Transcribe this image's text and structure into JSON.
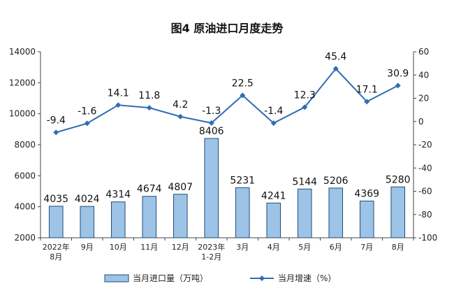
{
  "chart_data": {
    "type": "bar",
    "title": "图4  原油进口月度走势",
    "categories": [
      "2022年\n8月",
      "9月",
      "10月",
      "11月",
      "12月",
      "2023年\n1-2月",
      "3月",
      "4月",
      "5月",
      "6月",
      "7月",
      "8月"
    ],
    "series": [
      {
        "name": "当月进口量（万吨）",
        "type": "bar",
        "axis": "left",
        "color": "#9dc3e6",
        "values": [
          4035,
          4024,
          4314,
          4674,
          4807,
          8406,
          5231,
          4241,
          5144,
          5206,
          4369,
          5280
        ]
      },
      {
        "name": "当月增速（%）",
        "type": "line",
        "axis": "right",
        "color": "#2e6eb5",
        "values": [
          -9.4,
          -1.6,
          14.1,
          11.8,
          4.2,
          -1.3,
          22.5,
          -1.4,
          12.3,
          45.4,
          17.1,
          30.9
        ]
      }
    ],
    "ylim_left": [
      2000,
      14000
    ],
    "yticks_left": [
      2000,
      4000,
      6000,
      8000,
      10000,
      12000,
      14000
    ],
    "ylim_right": [
      -100,
      60
    ],
    "yticks_right": [
      -100,
      -80,
      -60,
      -40,
      -20,
      0,
      20,
      40,
      60
    ],
    "grid": false,
    "legend_position": "bottom"
  }
}
